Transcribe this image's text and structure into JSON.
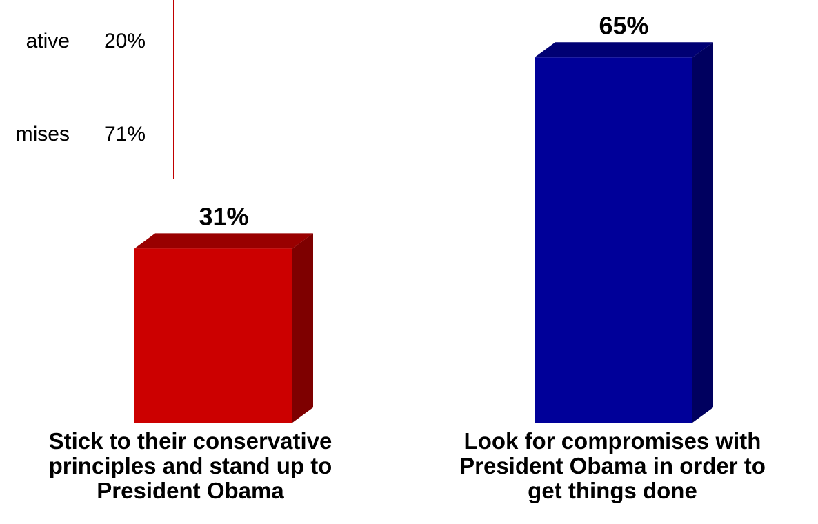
{
  "chart_data": {
    "type": "bar",
    "categories": [
      "Stick to their conservative principles and stand up to President Obama",
      "Look for compromises with President Obama in order to get things done"
    ],
    "category_lines": [
      [
        "Stick to their conservative",
        "principles and stand up to",
        "President Obama"
      ],
      [
        "Look for compromises with",
        "President Obama in order to",
        "get things done"
      ]
    ],
    "values": [
      31,
      65
    ],
    "value_labels": [
      "31%",
      "65%"
    ],
    "colors": [
      "#cc0000",
      "#000099"
    ],
    "ylim": [
      0,
      70
    ],
    "legend": {
      "placement": "top-left",
      "entries": [
        {
          "label": "ative",
          "value": "20%"
        },
        {
          "label": "mises",
          "value": "71%"
        }
      ],
      "border_color": "#c00000"
    }
  }
}
